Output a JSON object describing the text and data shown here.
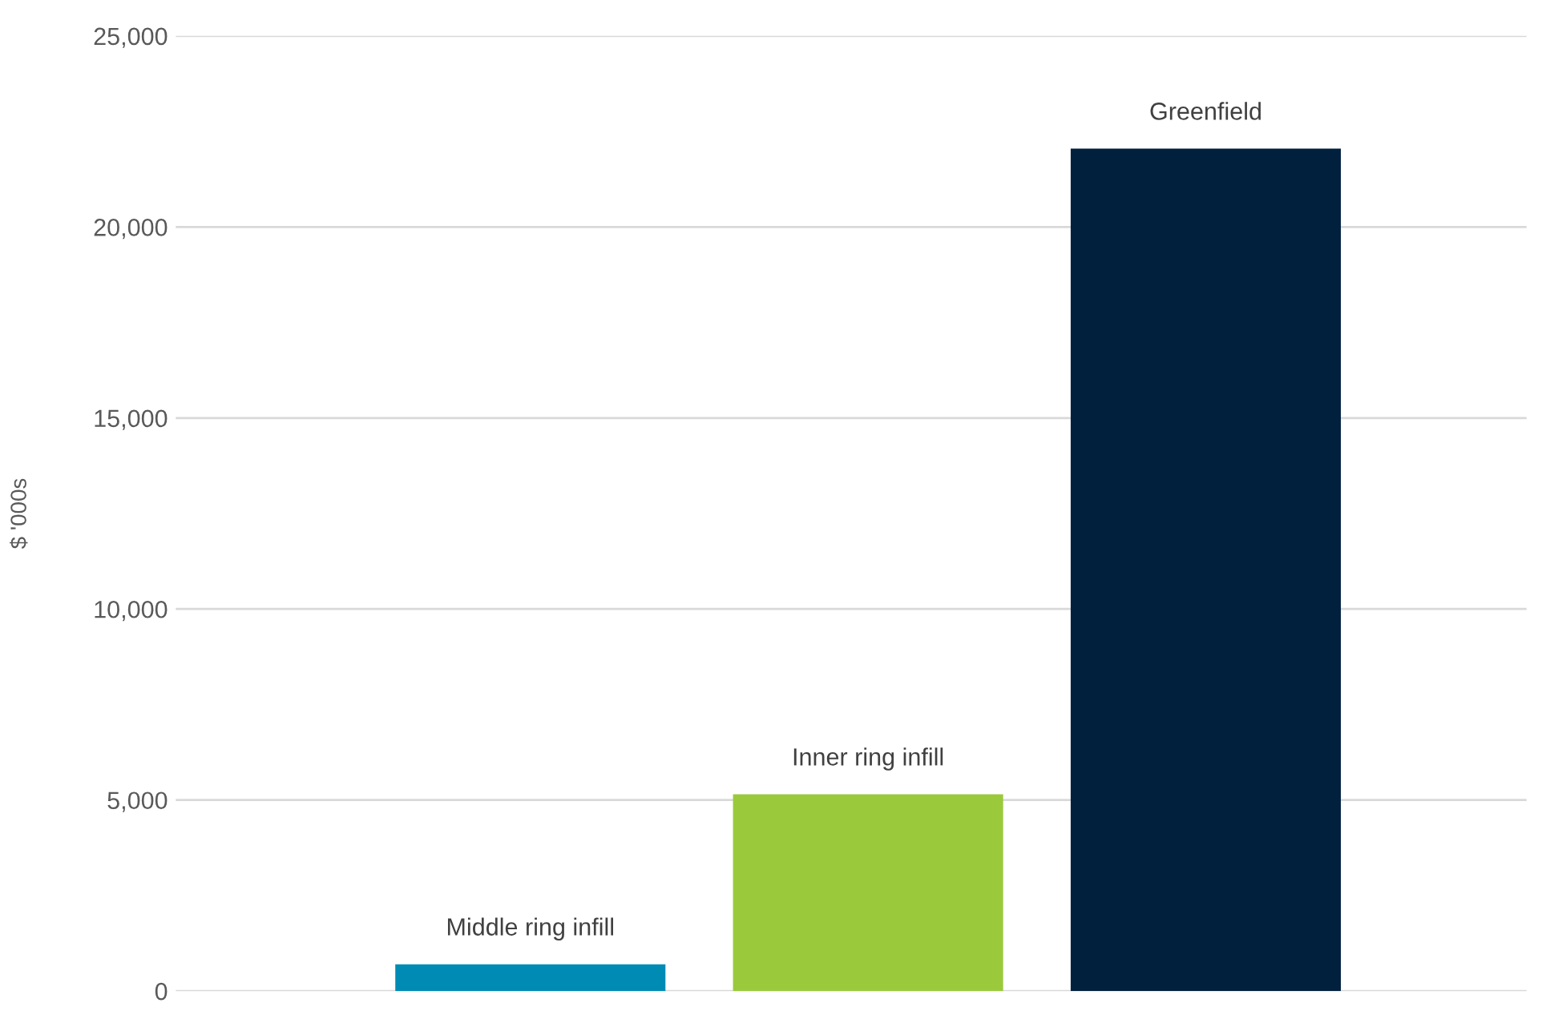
{
  "chart_data": {
    "type": "bar",
    "ylabel": "$ '000s",
    "categories": [
      "Middle ring infill",
      "Inner ring infill",
      "Greenfield"
    ],
    "values": [
      700,
      5150,
      22050
    ],
    "colors": [
      "#008bb5",
      "#9bc93c",
      "#00203e"
    ],
    "ylim": [
      0,
      25000
    ],
    "yticks": [
      {
        "value": 0,
        "label": "0"
      },
      {
        "value": 5000,
        "label": "5,000"
      },
      {
        "value": 10000,
        "label": "10,000"
      },
      {
        "value": 15000,
        "label": "15,000"
      },
      {
        "value": 20000,
        "label": "20,000"
      },
      {
        "value": 25000,
        "label": "25,000"
      }
    ],
    "grid": "y",
    "tick_labels": "y"
  }
}
